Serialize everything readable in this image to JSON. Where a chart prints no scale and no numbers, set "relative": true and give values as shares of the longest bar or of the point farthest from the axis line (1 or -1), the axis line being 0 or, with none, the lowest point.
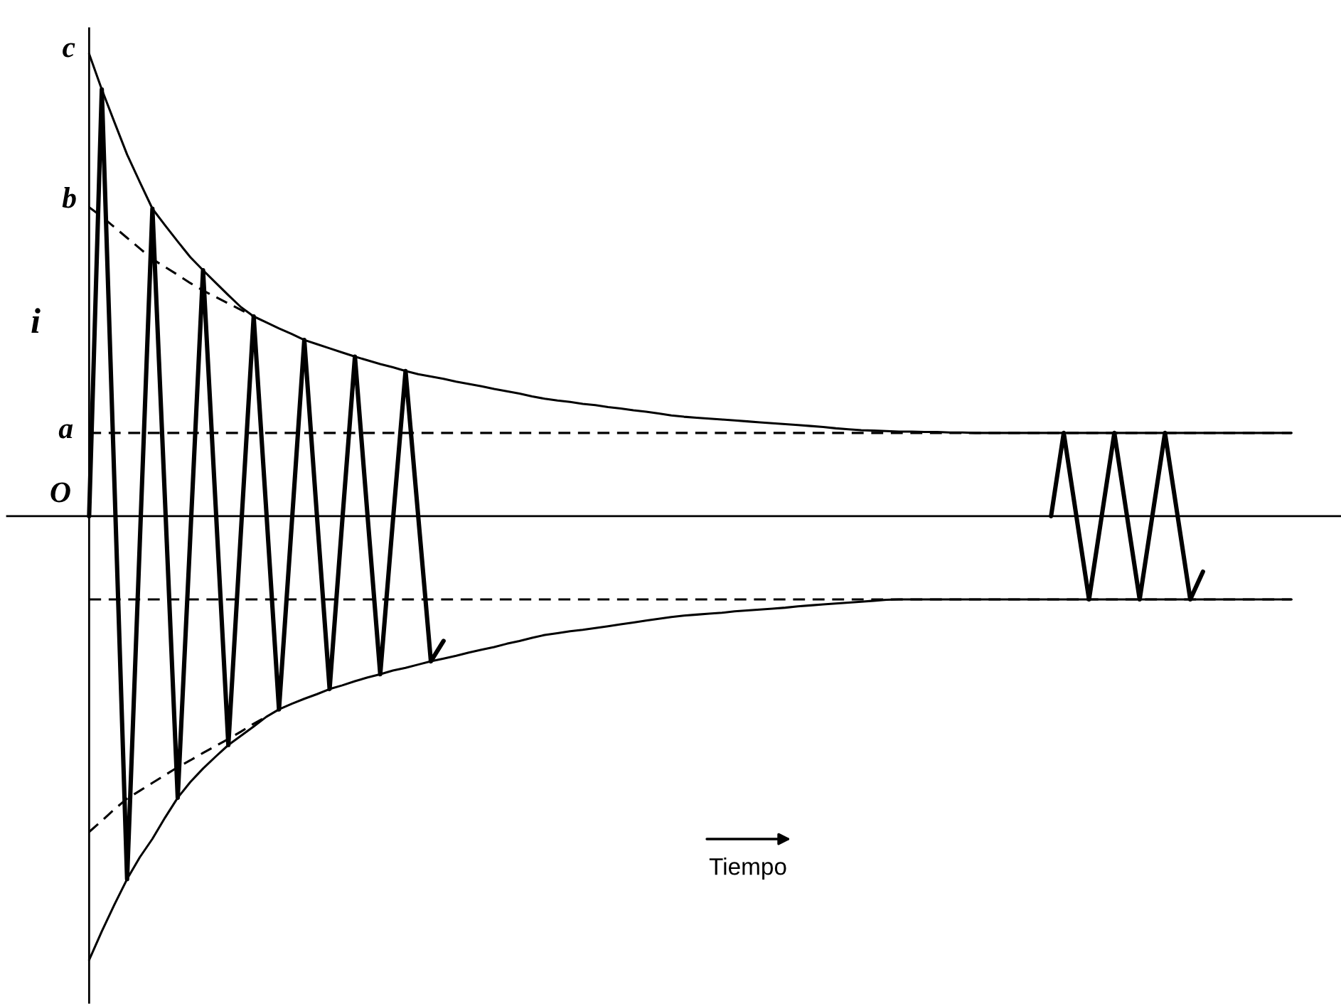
{
  "chart_data": {
    "type": "line",
    "relative": true,
    "xlabel": "Tiempo",
    "ylabel": "i",
    "categories": [
      null,
      null,
      null,
      null,
      null,
      null,
      null,
      null,
      null,
      null,
      null,
      null,
      null,
      null,
      null,
      null,
      null,
      null,
      null,
      null,
      null,
      null,
      null,
      null,
      null,
      null,
      null,
      null,
      null,
      null,
      null,
      null,
      null,
      null,
      null,
      null,
      null,
      null,
      null,
      null,
      null,
      null,
      null,
      null,
      null,
      null,
      null,
      null,
      null,
      null,
      null,
      null,
      null,
      null,
      null,
      null,
      null,
      null,
      null,
      null,
      null,
      null,
      null,
      null,
      null,
      null,
      null,
      null,
      null,
      null,
      null,
      null,
      null,
      null,
      null,
      null,
      null,
      null,
      null,
      null,
      null,
      null,
      null,
      null,
      null,
      null,
      null,
      null,
      null,
      null,
      null,
      null,
      null,
      null,
      null,
      null
    ],
    "series": [
      {
        "color": "#000000",
        "line_style": "solid",
        "values": [
          0,
          0.923,
          0.07,
          -0.785,
          -0.06,
          0.665,
          0.03,
          -0.609,
          -0.04,
          0.532,
          0.02,
          -0.495,
          -0.03,
          0.432,
          0.01,
          -0.418,
          -0.02,
          0.381,
          0.0,
          -0.374,
          -0.01,
          0.345,
          0.0,
          -0.342,
          -0.01,
          0.314,
          0.0,
          -0.314,
          -0.27,
          null,
          null,
          null,
          null,
          null,
          null,
          null,
          null,
          null,
          null,
          null,
          null,
          null,
          null,
          null,
          null,
          null,
          null,
          null,
          null,
          null,
          null,
          null,
          null,
          null,
          null,
          null,
          null,
          null,
          null,
          null,
          null,
          null,
          null,
          null,
          null,
          null,
          null,
          null,
          null,
          null,
          null,
          null,
          null,
          null,
          null,
          null,
          0,
          0.18,
          0,
          -0.18,
          0,
          0.18,
          0,
          -0.18,
          0,
          0.18,
          0,
          -0.18,
          -0.12,
          null,
          null,
          null,
          null,
          null,
          null,
          null
        ]
      },
      {
        "color": "#000000",
        "line_style": "solid",
        "values": [
          1.0,
          0.923,
          0.852,
          0.782,
          0.723,
          0.665,
          0.629,
          0.594,
          0.56,
          0.532,
          0.505,
          0.478,
          0.452,
          0.432,
          0.419,
          0.406,
          0.394,
          0.381,
          0.372,
          0.363,
          0.354,
          0.345,
          0.337,
          0.329,
          0.322,
          0.314,
          0.307,
          0.302,
          0.297,
          0.291,
          0.286,
          0.281,
          0.275,
          0.27,
          0.265,
          0.259,
          0.254,
          0.25,
          0.247,
          0.243,
          0.24,
          0.236,
          0.233,
          0.229,
          0.226,
          0.222,
          0.218,
          0.215,
          0.213,
          0.211,
          0.209,
          0.207,
          0.205,
          0.203,
          0.201,
          0.199,
          0.197,
          0.195,
          0.193,
          0.19,
          0.188,
          0.186,
          0.185,
          0.184,
          0.183,
          0.183,
          0.182,
          0.182,
          0.181,
          0.181,
          0.18,
          0.18,
          0.18,
          0.18,
          0.18,
          0.18,
          0.18,
          0.18,
          0.18,
          0.18,
          0.18,
          0.18,
          0.18,
          0.18,
          0.18,
          0.18,
          0.18,
          0.18,
          0.18,
          0.18,
          0.18,
          0.18,
          0.18,
          0.18,
          0.18,
          0.18
        ]
      },
      {
        "color": "#000000",
        "line_style": "solid",
        "values": [
          -0.96,
          -0.898,
          -0.84,
          -0.785,
          -0.738,
          -0.698,
          -0.652,
          -0.609,
          -0.575,
          -0.546,
          -0.52,
          -0.495,
          -0.475,
          -0.455,
          -0.434,
          -0.418,
          -0.406,
          -0.395,
          -0.385,
          -0.374,
          -0.366,
          -0.357,
          -0.349,
          -0.342,
          -0.334,
          -0.328,
          -0.321,
          -0.314,
          -0.308,
          -0.302,
          -0.295,
          -0.289,
          -0.283,
          -0.276,
          -0.27,
          -0.263,
          -0.257,
          -0.253,
          -0.249,
          -0.246,
          -0.242,
          -0.238,
          -0.234,
          -0.23,
          -0.226,
          -0.222,
          -0.218,
          -0.215,
          -0.213,
          -0.211,
          -0.209,
          -0.206,
          -0.204,
          -0.202,
          -0.2,
          -0.198,
          -0.195,
          -0.193,
          -0.191,
          -0.189,
          -0.187,
          -0.185,
          -0.183,
          -0.181,
          -0.18,
          -0.18,
          -0.18,
          -0.18,
          -0.18,
          -0.18,
          -0.18,
          -0.18,
          -0.18,
          -0.18,
          -0.18,
          -0.18,
          -0.18,
          -0.18,
          -0.18,
          -0.18,
          -0.18,
          -0.18,
          -0.18,
          -0.18,
          -0.18,
          -0.18,
          -0.18,
          -0.18,
          -0.18,
          -0.18,
          -0.18,
          -0.18,
          -0.18,
          -0.18,
          -0.18,
          -0.18
        ]
      },
      {
        "color": "#000000",
        "line_style": "dashed",
        "values": [
          0.668,
          0.648,
          0.625,
          0.602,
          0.579,
          0.556,
          0.539,
          0.522,
          0.504,
          0.488,
          0.474,
          0.46,
          0.446,
          0.432,
          null,
          null,
          null,
          null,
          null,
          null,
          null,
          null,
          null,
          null,
          null,
          null,
          null,
          null,
          null,
          null,
          null,
          null,
          null,
          null,
          null,
          null,
          null,
          null,
          null,
          null,
          null,
          null,
          null,
          null,
          null,
          null,
          null,
          null,
          null,
          null,
          null,
          null,
          null,
          null,
          null,
          null,
          null,
          null,
          null,
          null,
          null,
          null,
          null,
          null,
          null,
          null,
          null,
          null,
          null,
          null,
          null,
          null,
          null,
          null,
          null,
          null,
          null,
          null,
          null,
          null,
          null,
          null,
          null,
          null,
          null,
          null,
          null,
          null,
          null,
          null,
          null,
          null,
          null,
          null,
          null,
          null
        ]
      },
      {
        "color": "#000000",
        "line_style": "dashed",
        "values": [
          -0.683,
          -0.659,
          -0.634,
          -0.611,
          -0.594,
          -0.577,
          -0.56,
          -0.543,
          -0.528,
          -0.512,
          -0.497,
          -0.482,
          -0.466,
          -0.449,
          -0.434,
          null,
          null,
          null,
          null,
          null,
          null,
          null,
          null,
          null,
          null,
          null,
          null,
          null,
          null,
          null,
          null,
          null,
          null,
          null,
          null,
          null,
          null,
          null,
          null,
          null,
          null,
          null,
          null,
          null,
          null,
          null,
          null,
          null,
          null,
          null,
          null,
          null,
          null,
          null,
          null,
          null,
          null,
          null,
          null,
          null,
          null,
          null,
          null,
          null,
          null,
          null,
          null,
          null,
          null,
          null,
          null,
          null,
          null,
          null,
          null,
          null,
          null,
          null,
          null,
          null,
          null,
          null,
          null,
          null,
          null,
          null,
          null,
          null,
          null,
          null,
          null,
          null,
          null,
          null,
          null,
          null
        ]
      }
    ],
    "ref_lines": [
      {
        "axis": "y",
        "value": 0.18,
        "label": "a",
        "line_style": "dashed",
        "color": "#000000"
      },
      {
        "axis": "y",
        "value": -0.18,
        "line_style": "dashed",
        "color": "#000000"
      }
    ],
    "annotations": [
      "c",
      "b",
      "O"
    ]
  }
}
